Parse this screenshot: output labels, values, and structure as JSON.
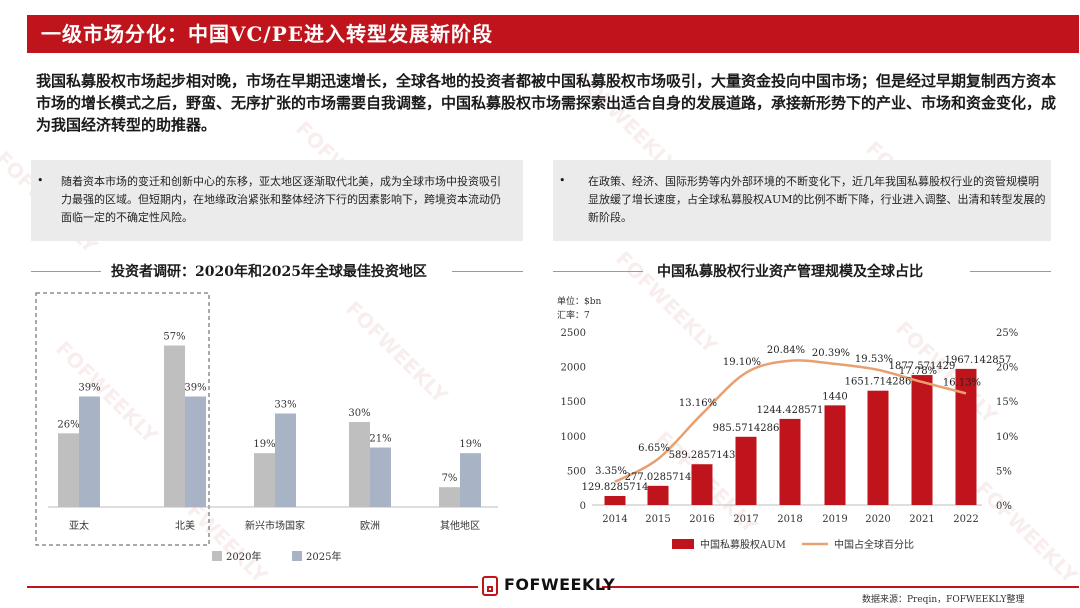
{
  "header": {
    "title": "一级市场分化：中国VC/PE进入转型发展新阶段"
  },
  "intro": {
    "text": "我国私募股权市场起步相对晚，市场在早期迅速增长，全球各地的投资者都被中国私募股权市场吸引，大量资金投向中国市场；但是经过早期复制西方资本市场的增长模式之后，野蛮、无序扩张的市场需要自我调整，中国私募股权市场需探索出适合自身的发展道路，承接新形势下的产业、市场和资金变化，成为我国经济转型的助推器。"
  },
  "bullets": [
    {
      "marker": "•",
      "text": "随着资本市场的变迁和创新中心的东移，亚太地区逐渐取代北美，成为全球市场中投资吸引力最强的区域。但短期内，在地缘政治紧张和整体经济下行的因素影响下，跨境资本流动仍面临一定的不确定性风险。"
    },
    {
      "marker": "•",
      "text": "在政策、经济、国际形势等内外部环境的不断变化下，近几年我国私募股权行业的资管规模明显放缓了增长速度，占全球私募股权AUM的比例不断下降，行业进入调整、出清和转型发展的新阶段。"
    }
  ],
  "chart_data": [
    {
      "type": "bar",
      "title": "投资者调研：2020年和2025年全球最佳投资地区",
      "categories": [
        "亚太",
        "北美",
        "新兴市场国家",
        "欧洲",
        "其他地区"
      ],
      "series": [
        {
          "name": "2020年",
          "values": [
            26,
            57,
            19,
            30,
            7
          ],
          "labels": [
            "26%",
            "57%",
            "19%",
            "30%",
            "7%"
          ],
          "color": "#bfbfbf"
        },
        {
          "name": "2025年",
          "values": [
            39,
            39,
            33,
            21,
            19
          ],
          "labels": [
            "39%",
            "39%",
            "33%",
            "21%",
            "19%"
          ],
          "color": "#a9b3c6"
        }
      ],
      "ylim": [
        0,
        60
      ],
      "grid": false,
      "legend": "bottom",
      "highlight_categories": [
        "亚太",
        "北美"
      ]
    },
    {
      "type": "bar",
      "title": "中国私募股权行业资产管理规模及全球占比",
      "unit_label": "单位：$bn",
      "rate_label": "汇率：7",
      "categories": [
        "2014",
        "2015",
        "2016",
        "2017",
        "2018",
        "2019",
        "2020",
        "2021",
        "2022"
      ],
      "series": [
        {
          "name": "中国私募股权AUM",
          "type": "bar",
          "axis": "left",
          "color": "#c0141c",
          "values": [
            129.8285714,
            277.0285714,
            589.2857143,
            985.5714286,
            1244.428571,
            1440,
            1651.714286,
            1877.571429,
            1967.142857
          ],
          "labels": [
            "129.8285714",
            "277.0285714",
            "589.2857143",
            "985.5714286",
            "1244.428571",
            "1440",
            "1651.714286",
            "1877.571429",
            "1967.142857"
          ]
        },
        {
          "name": "中国占全球百分比",
          "type": "line",
          "axis": "right",
          "color": "#e8a070",
          "values": [
            3.35,
            6.65,
            13.16,
            19.1,
            20.84,
            20.39,
            19.53,
            17.78,
            16.13
          ],
          "labels": [
            "3.35%",
            "6.65%",
            "13.16%",
            "19.10%",
            "20.84%",
            "20.39%",
            "19.53%",
            "17.78%",
            "16.13%"
          ]
        }
      ],
      "y_left": {
        "min": 0,
        "max": 2500,
        "ticks": [
          "0",
          "500",
          "1000",
          "1500",
          "2000",
          "2500"
        ]
      },
      "y_right": {
        "min": 0,
        "max": 25,
        "ticks": [
          "0%",
          "5%",
          "10%",
          "15%",
          "20%",
          "25%"
        ]
      },
      "grid": false,
      "legend": "bottom"
    }
  ],
  "footer": {
    "logo_text": "FOFWEEKLY",
    "source": "数据来源：Preqin，FOFWEEKLY整理"
  },
  "watermark": {
    "text": "FOFWEEKLY"
  },
  "colors": {
    "brand_red": "#c0141c",
    "box_gray": "#ebebeb",
    "bar_2020": "#bfbfbf",
    "bar_2025": "#a9b3c6",
    "line_orange": "#e8a070"
  }
}
